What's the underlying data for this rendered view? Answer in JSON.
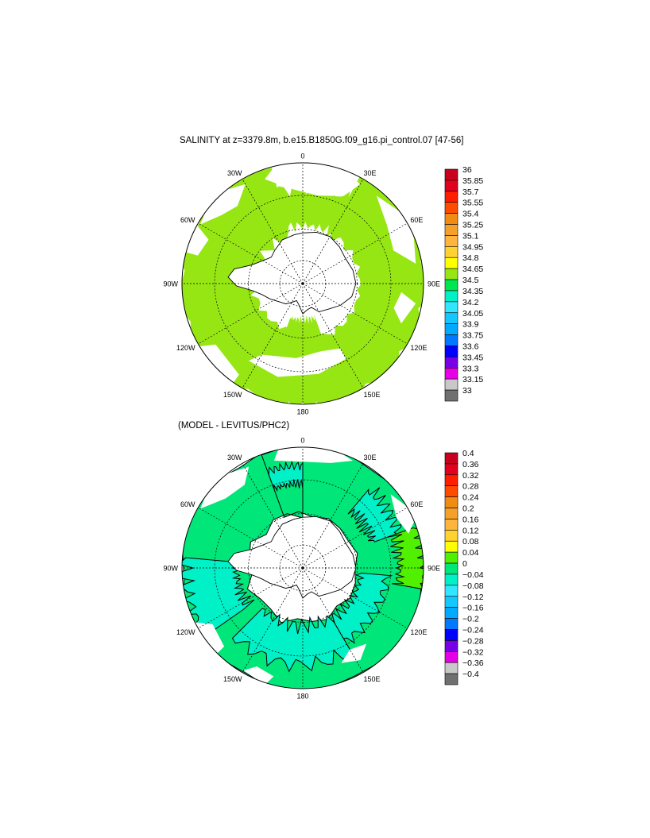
{
  "chart_data": [
    {
      "type": "heatmap",
      "title": "SALINITY at z=3379.8m, b.e15.B1850G.f09_g16.pi_control.07 [47-56]",
      "projection": "south polar stereographic",
      "longitude_labels": [
        "0",
        "30E",
        "60E",
        "90E",
        "120E",
        "150E",
        "180",
        "150W",
        "120W",
        "90W",
        "60W",
        "30W"
      ],
      "colorbar": {
        "levels": [
          "36",
          "35.85",
          "35.7",
          "35.55",
          "35.4",
          "35.25",
          "35.1",
          "34.95",
          "34.8",
          "34.65",
          "34.5",
          "34.35",
          "34.2",
          "34.05",
          "33.9",
          "33.75",
          "33.6",
          "33.45",
          "33.3",
          "33.15",
          "33"
        ],
        "colors": [
          "#c8001e",
          "#e1001e",
          "#ff1e00",
          "#ff4b00",
          "#f08c14",
          "#f5a028",
          "#ffb43c",
          "#ffd232",
          "#ffff00",
          "#96e614",
          "#00e650",
          "#00f0c8",
          "#32e6ff",
          "#14c8ff",
          "#00aaff",
          "#0078ff",
          "#0000ff",
          "#7800e6",
          "#e600e6",
          "#c8c8c8",
          "#707070"
        ]
      },
      "dominant_value_range": [
        "34.65",
        "34.8"
      ]
    },
    {
      "type": "heatmap",
      "title": "(MODEL - LEVITUS/PHC2)",
      "projection": "south polar stereographic",
      "longitude_labels": [
        "0",
        "30E",
        "60E",
        "90E",
        "120E",
        "150E",
        "180",
        "150W",
        "120W",
        "90W",
        "60W",
        "30W"
      ],
      "colorbar": {
        "levels": [
          "0.4",
          "0.36",
          "0.32",
          "0.28",
          "0.24",
          "0.2",
          "0.16",
          "0.12",
          "0.08",
          "0.04",
          "0",
          "−0.04",
          "−0.08",
          "−0.12",
          "−0.16",
          "−0.2",
          "−0.24",
          "−0.28",
          "−0.32",
          "−0.36",
          "−0.4"
        ],
        "colors": [
          "#c8001e",
          "#e1001e",
          "#ff1e00",
          "#ff4b00",
          "#f08c14",
          "#f5a028",
          "#ffb43c",
          "#ffd232",
          "#ffff00",
          "#50f000",
          "#00e678",
          "#00f0c8",
          "#32e6ff",
          "#14c8ff",
          "#00aaff",
          "#0078ff",
          "#0000ff",
          "#7800e6",
          "#e600e6",
          "#c8c8c8",
          "#707070"
        ]
      },
      "dominant_value_range": [
        "-0.04",
        "0.04"
      ]
    }
  ]
}
